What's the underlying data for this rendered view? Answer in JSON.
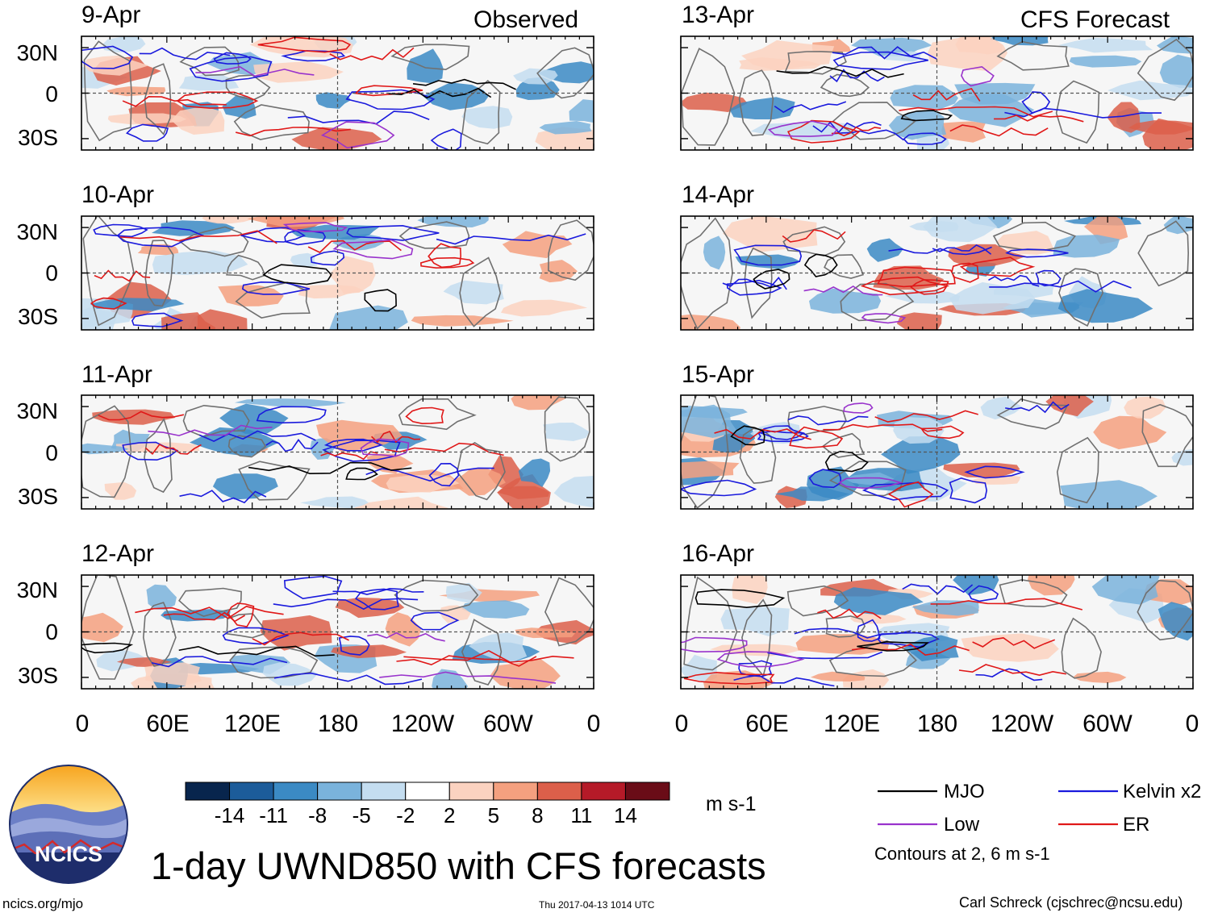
{
  "colors": {
    "mjo": "#000000",
    "low": "#9933cc",
    "kelvin": "#1a1add",
    "er": "#e01818",
    "coast": "#707070",
    "colorbar": [
      "#08254d",
      "#1c5c9a",
      "#3b8ac4",
      "#7ab3dc",
      "#c4ddf0",
      "#ffffff",
      "#fbd2c0",
      "#f4a07f",
      "#dc5f4a",
      "#b51a28",
      "#6a0c17"
    ]
  },
  "panels": {
    "observed_header": "Observed",
    "forecast_header": "CFS Forecast",
    "left_dates": [
      "9-Apr",
      "10-Apr",
      "11-Apr",
      "12-Apr"
    ],
    "right_dates": [
      "13-Apr",
      "14-Apr",
      "15-Apr",
      "16-Apr"
    ]
  },
  "axes": {
    "lat_labels": [
      "30N",
      "0",
      "30S"
    ],
    "lon_labels": [
      "0",
      "60E",
      "120E",
      "180",
      "120W",
      "60W",
      "0"
    ]
  },
  "colorbar": {
    "tick_labels": [
      "-14",
      "-11",
      "-8",
      "-5",
      "-2",
      "2",
      "5",
      "8",
      "11",
      "14"
    ],
    "units": "m s-1"
  },
  "legend": {
    "mjo": "MJO",
    "low": "Low",
    "kelvin": "Kelvin x2",
    "er": "ER",
    "contours_note": "Contours at 2, 6 m s-1"
  },
  "logo": {
    "text": "NCICS"
  },
  "title": "1-day UWND850 with CFS forecasts",
  "footer": {
    "url": "ncics.org/mjo",
    "timestamp": "Thu 2017-04-13 1014 UTC",
    "credit": "Carl Schreck (cjschrec@ncsu.edu)"
  }
}
